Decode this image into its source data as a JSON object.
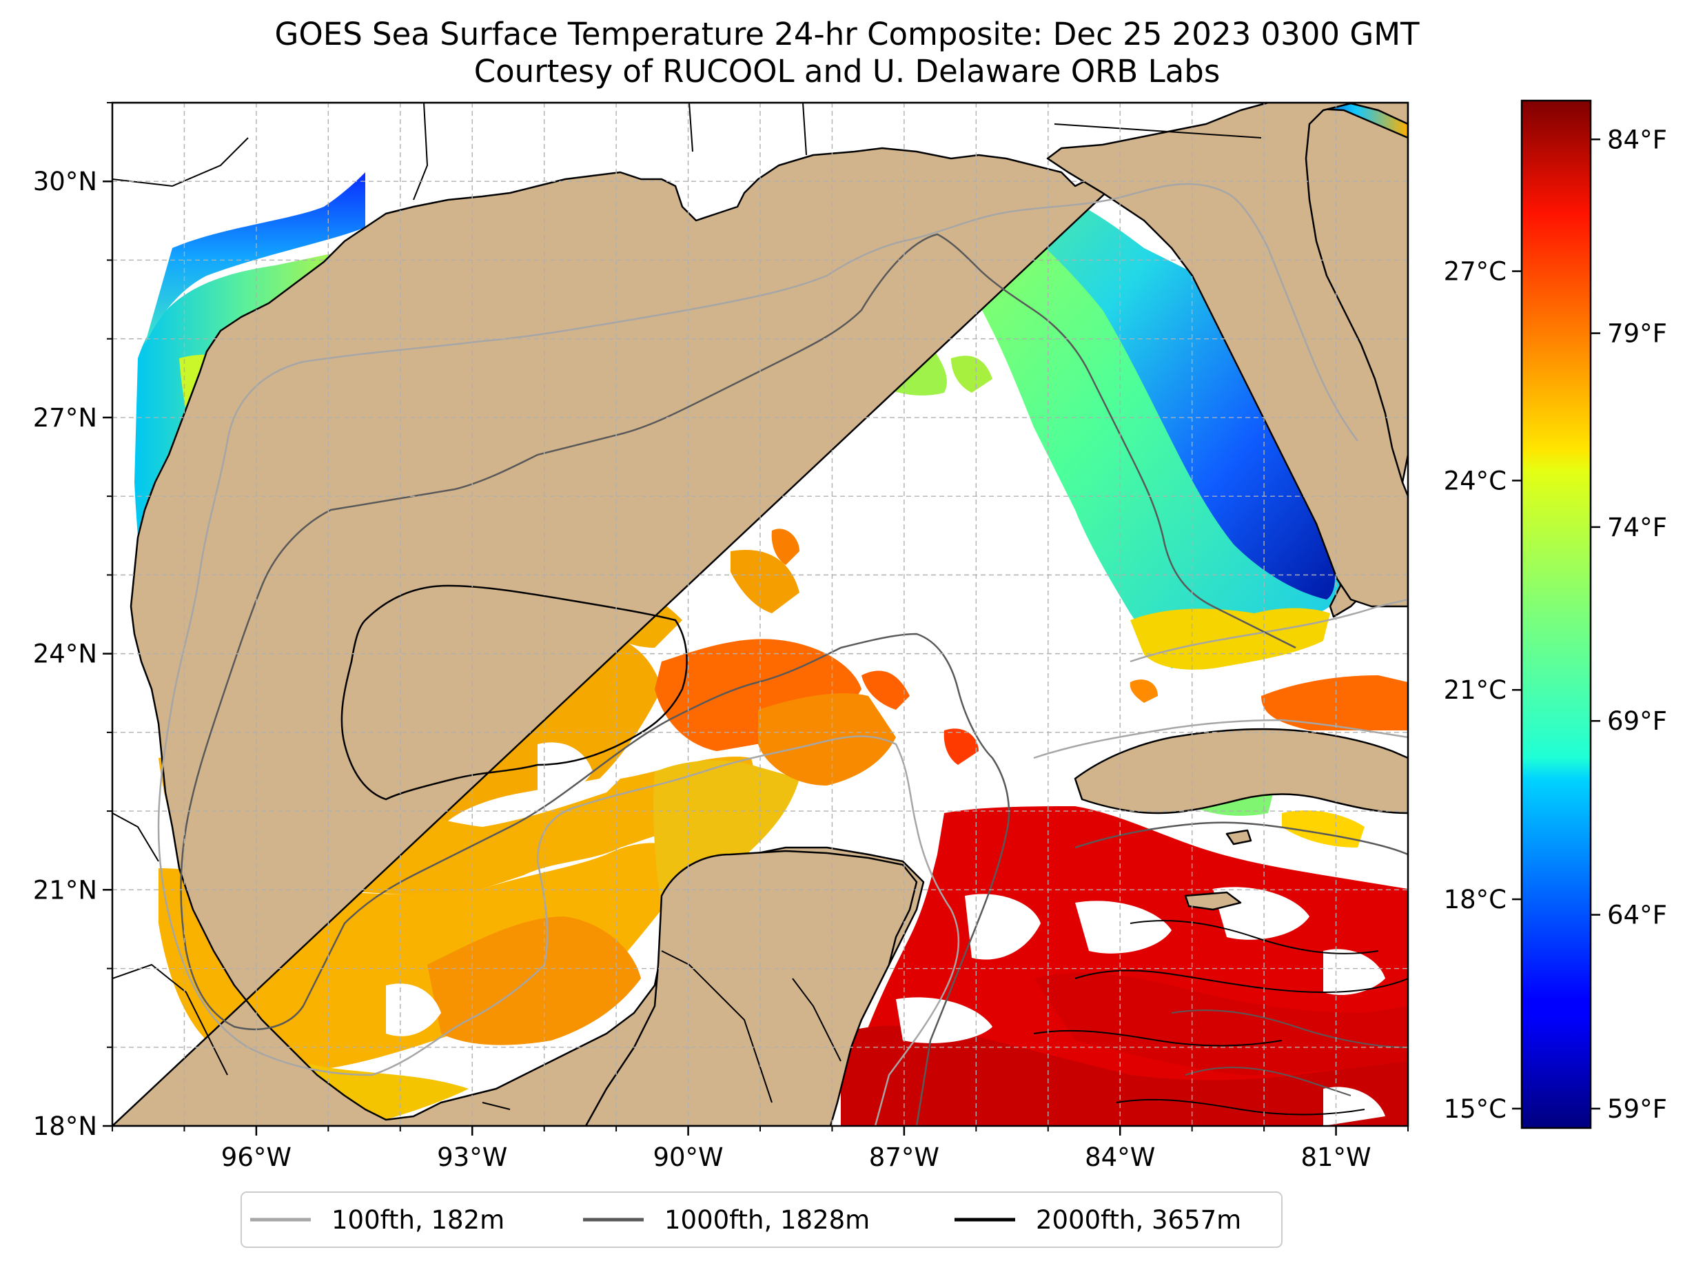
{
  "title": "GOES Sea Surface Temperature 24-hr Composite: Dec 25 2023 0300 GMT",
  "subtitle": "Courtesy of RUCOOL and U. Delaware ORB Labs",
  "map": {
    "region": "Gulf of Mexico",
    "extent": {
      "lon_min": -98.0,
      "lon_max": -80.0,
      "lat_min": 18.0,
      "lat_max": 31.0
    },
    "lon_ticks": [
      {
        "value": -96,
        "label": "96°W"
      },
      {
        "value": -93,
        "label": "93°W"
      },
      {
        "value": -90,
        "label": "90°W"
      },
      {
        "value": -87,
        "label": "87°W"
      },
      {
        "value": -84,
        "label": "84°W"
      },
      {
        "value": -81,
        "label": "81°W"
      }
    ],
    "lat_ticks": [
      {
        "value": 18,
        "label": "18°N"
      },
      {
        "value": 21,
        "label": "21°N"
      },
      {
        "value": 24,
        "label": "24°N"
      },
      {
        "value": 27,
        "label": "27°N"
      },
      {
        "value": 30,
        "label": "30°N"
      }
    ],
    "land_color": "#d2b48c",
    "no_data_color": "#ffffff",
    "gridlines": true
  },
  "colorbar": {
    "colormap": "jet",
    "range_f": [
      58.5,
      85.0
    ],
    "celsius_ticks": [
      {
        "value": 15,
        "label": "15°C"
      },
      {
        "value": 18,
        "label": "18°C"
      },
      {
        "value": 21,
        "label": "21°C"
      },
      {
        "value": 24,
        "label": "24°C"
      },
      {
        "value": 27,
        "label": "27°C"
      }
    ],
    "fahrenheit_ticks": [
      {
        "value": 59,
        "label": "59°F"
      },
      {
        "value": 64,
        "label": "64°F"
      },
      {
        "value": 69,
        "label": "69°F"
      },
      {
        "value": 74,
        "label": "74°F"
      },
      {
        "value": 79,
        "label": "79°F"
      },
      {
        "value": 84,
        "label": "84°F"
      }
    ]
  },
  "legend": {
    "items": [
      {
        "label": "100fth, 182m",
        "color": "#a6a6a6"
      },
      {
        "label": "1000fth, 1828m",
        "color": "#595959"
      },
      {
        "label": "2000fth, 3657m",
        "color": "#000000"
      }
    ]
  }
}
